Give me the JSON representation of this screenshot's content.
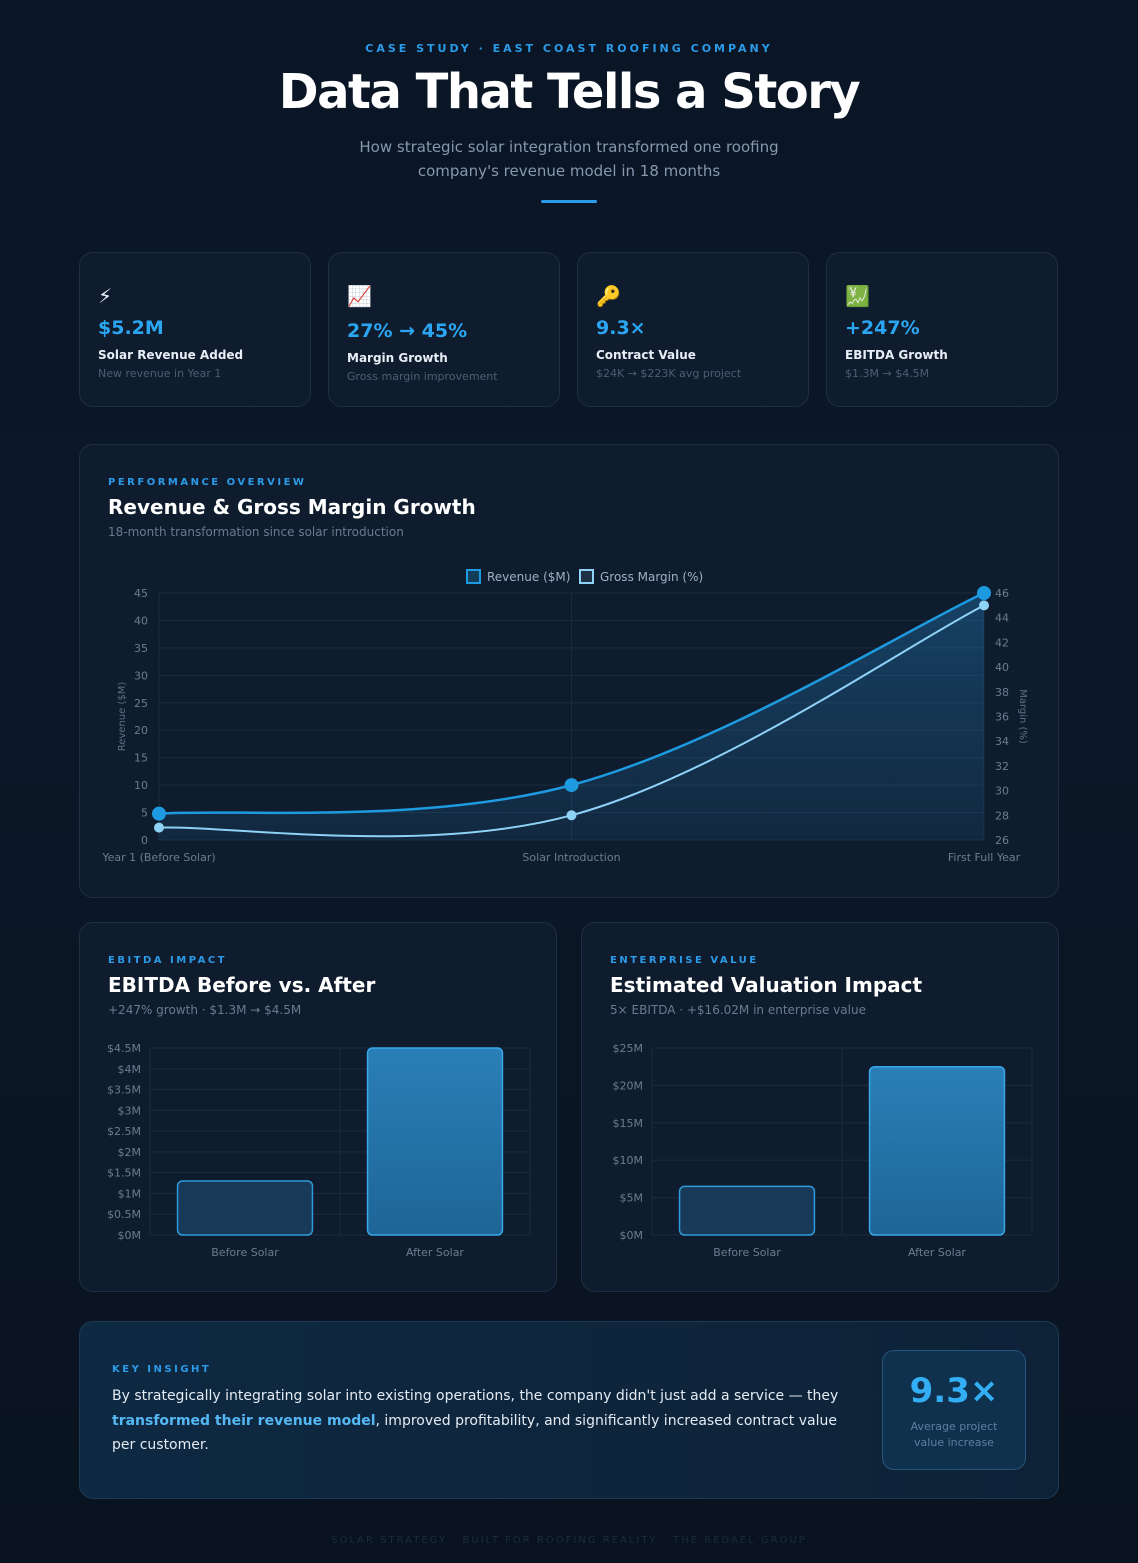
{
  "header": {
    "eyebrow": "CASE STUDY · EAST COAST ROOFING COMPANY",
    "title": "Data That Tells a Story",
    "subtitle": "How strategic solar integration transformed one roofing company's revenue model in 18 months"
  },
  "stats": [
    {
      "icon": "lightning-icon",
      "glyph": "⚡",
      "value": "$5.2M",
      "label": "Solar Revenue Added",
      "sub": "New revenue in Year 1"
    },
    {
      "icon": "chart-up-icon",
      "glyph": "📈",
      "value": "27% → 45%",
      "label": "Margin Growth",
      "sub": "Gross margin improvement"
    },
    {
      "icon": "key-icon",
      "glyph": "🔑",
      "value": "9.3×",
      "label": "Contract Value",
      "sub": "$24K → $223K avg project"
    },
    {
      "icon": "yen-chart-icon",
      "glyph": "💹",
      "value": "+247%",
      "label": "EBITDA Growth",
      "sub": "$1.3M → $4.5M"
    }
  ],
  "overview": {
    "eyebrow": "PERFORMANCE OVERVIEW",
    "title": "Revenue & Gross Margin Growth",
    "subtitle": "18-month transformation since solar introduction"
  },
  "ebitda": {
    "eyebrow": "EBITDA IMPACT",
    "title": "EBITDA Before vs. After",
    "subtitle": "+247% growth · $1.3M → $4.5M"
  },
  "valuation": {
    "eyebrow": "ENTERPRISE VALUE",
    "title": "Estimated Valuation Impact",
    "subtitle": "5× EBITDA · +$16.02M in enterprise value"
  },
  "insight": {
    "eyebrow": "KEY INSIGHT",
    "text_before": "By strategically integrating solar into existing operations, the company didn't just add a service — they ",
    "highlight": "transformed their revenue model",
    "text_after": ", improved profitability, and significantly increased contract value per customer.",
    "badge_value": "9.3×",
    "badge_caption": "Average project value increase"
  },
  "footer": "SOLAR STRATEGY · BUILT FOR ROOFING REALITY · THE REDAEL GROUP",
  "colors": {
    "accent": "#2b9be8",
    "revenue": "#1e9be0",
    "margin": "#8fd2f7",
    "bar": "#2a7fb8"
  },
  "chart_data": [
    {
      "type": "line",
      "categories": [
        "Year 1 (Before Solar)",
        "Solar Introduction",
        "First Full Year"
      ],
      "series": [
        {
          "name": "Revenue ($M)",
          "axis": "left",
          "values": [
            4.8,
            10,
            45
          ]
        },
        {
          "name": "Gross Margin (%)",
          "axis": "right",
          "values": [
            27,
            28,
            45
          ]
        }
      ],
      "ylabel": "Revenue ($M)",
      "y2label": "Margin (%)",
      "ylim": [
        0,
        45
      ],
      "y2lim": [
        26,
        46
      ],
      "yticks": [
        "0",
        "5",
        "10",
        "15",
        "20",
        "25",
        "30",
        "35",
        "40",
        "45"
      ],
      "y2ticks": [
        "26",
        "28",
        "30",
        "32",
        "34",
        "36",
        "38",
        "40",
        "42",
        "44",
        "46"
      ],
      "legend": "top-center",
      "grid": true
    },
    {
      "type": "bar",
      "categories": [
        "Before Solar",
        "After Solar"
      ],
      "values": [
        1.3,
        4.5
      ],
      "ylim": [
        0,
        4.5
      ],
      "yticks": [
        "$0M",
        "$0.5M",
        "$1M",
        "$1.5M",
        "$2M",
        "$2.5M",
        "$3M",
        "$3.5M",
        "$4M",
        "$4.5M"
      ],
      "grid": true
    },
    {
      "type": "bar",
      "categories": [
        "Before Solar",
        "After Solar"
      ],
      "values": [
        6.5,
        22.5
      ],
      "ylim": [
        0,
        25
      ],
      "yticks": [
        "$0M",
        "$5M",
        "$10M",
        "$15M",
        "$20M",
        "$25M"
      ],
      "grid": true
    }
  ]
}
